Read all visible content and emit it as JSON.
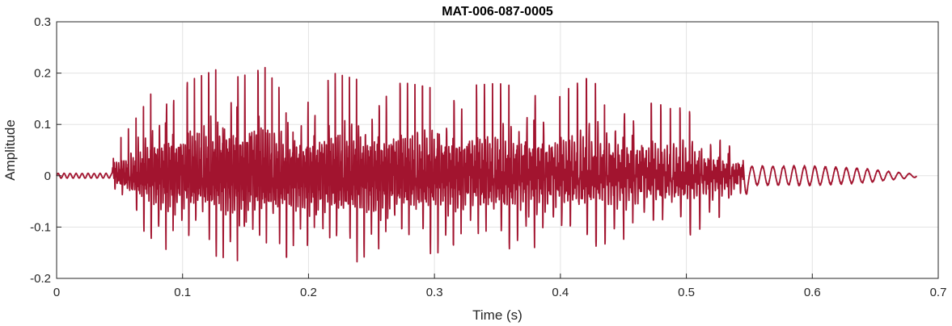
{
  "chart_data": {
    "type": "line",
    "title": "MAT-006-087-0005",
    "xlabel": "Time (s)",
    "ylabel": "Amplitude",
    "xlim": [
      0,
      0.7
    ],
    "ylim": [
      -0.2,
      0.3
    ],
    "x_ticks": [
      0,
      0.1,
      0.2,
      0.3,
      0.4,
      0.5,
      0.6,
      0.7
    ],
    "x_tick_labels": [
      "0",
      "0.1",
      "0.2",
      "0.3",
      "0.4",
      "0.5",
      "0.6",
      "0.7"
    ],
    "y_ticks": [
      -0.2,
      -0.1,
      0,
      0.1,
      0.2,
      0.3
    ],
    "y_tick_labels": [
      "-0.2",
      "-0.1",
      "0",
      "0.1",
      "0.2",
      "0.3"
    ],
    "grid": true,
    "series": [
      {
        "color": "#a2142f",
        "duration_s": 0.683,
        "voiced_interval_s": [
          0.045,
          0.545
        ],
        "envelope": {
          "t": [
            0,
            0.044,
            0.046,
            0.06,
            0.08,
            0.1,
            0.12,
            0.15,
            0.16,
            0.18,
            0.2,
            0.22,
            0.25,
            0.28,
            0.3,
            0.35,
            0.4,
            0.42,
            0.45,
            0.5,
            0.52,
            0.545,
            0.55,
            0.6,
            0.64,
            0.683
          ],
          "upper": [
            0.005,
            0.005,
            0.06,
            0.1,
            0.18,
            0.18,
            0.2,
            0.23,
            0.23,
            0.16,
            0.15,
            0.2,
            0.18,
            0.18,
            0.17,
            0.18,
            0.16,
            0.19,
            0.15,
            0.13,
            0.09,
            0.06,
            0.02,
            0.02,
            0.015,
            0.003
          ],
          "lower": [
            -0.005,
            -0.005,
            -0.04,
            -0.08,
            -0.14,
            -0.15,
            -0.15,
            -0.18,
            -0.18,
            -0.16,
            -0.15,
            -0.18,
            -0.16,
            -0.16,
            -0.15,
            -0.15,
            -0.14,
            -0.14,
            -0.13,
            -0.12,
            -0.09,
            -0.06,
            -0.02,
            -0.02,
            -0.015,
            -0.003
          ]
        }
      }
    ]
  }
}
